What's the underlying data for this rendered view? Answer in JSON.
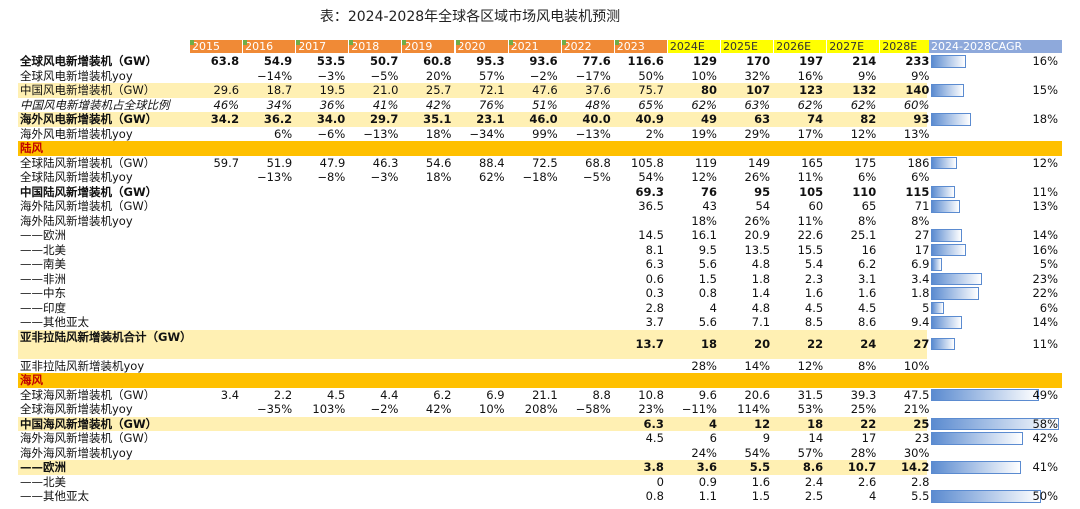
{
  "title": "表：2024-2028年全球各区域市场风电装机预测",
  "table": {
    "header": [
      "2015",
      "2016",
      "2017",
      "2018",
      "2019",
      "2020",
      "2021",
      "2022",
      "2023",
      "2024E",
      "2025E",
      "2026E",
      "2027E",
      "2028E",
      "2024-2028CAGR"
    ],
    "rows": [
      {
        "label": "全球风电新增装机（GW）",
        "values": [
          "63.8",
          "54.9",
          "53.5",
          "50.7",
          "60.8",
          "95.3",
          "93.6",
          "77.6",
          "116.6",
          "129",
          "170",
          "197",
          "214",
          "233"
        ],
        "cagr": {
          "value": 16,
          "label": "16%"
        }
      },
      {
        "label": "全球风电新增装机yoy",
        "values": [
          null,
          "−14%",
          "−3%",
          "−5%",
          "20%",
          "57%",
          "−2%",
          "−17%",
          "50%",
          "10%",
          "32%",
          "16%",
          "9%",
          "9%"
        ],
        "cagr": null
      },
      {
        "label": "中国风电新增装机（GW）",
        "values": [
          "29.6",
          "18.7",
          "19.5",
          "21.0",
          "25.7",
          "72.1",
          "47.6",
          "37.6",
          "75.7",
          "80",
          "107",
          "123",
          "132",
          "140"
        ],
        "cagr": {
          "value": 15,
          "label": "15%"
        }
      },
      {
        "label": "中国风电新增装机占全球比例",
        "values": [
          "46%",
          "34%",
          "36%",
          "41%",
          "42%",
          "76%",
          "51%",
          "48%",
          "65%",
          "62%",
          "63%",
          "62%",
          "62%",
          "60%"
        ],
        "cagr": null
      },
      {
        "label": "海外风电新增装机（GW）",
        "values": [
          "34.2",
          "36.2",
          "34.0",
          "29.7",
          "35.1",
          "23.1",
          "46.0",
          "40.0",
          "40.9",
          "49",
          "63",
          "74",
          "82",
          "93"
        ],
        "cagr": {
          "value": 18,
          "label": "18%"
        }
      },
      {
        "label": "海外风电新增装机yoy",
        "values": [
          null,
          "6%",
          "−6%",
          "−13%",
          "18%",
          "−34%",
          "99%",
          "−13%",
          "2%",
          "19%",
          "29%",
          "17%",
          "12%",
          "13%"
        ],
        "cagr": null
      },
      {
        "label": "陆风",
        "values": [
          null,
          null,
          null,
          null,
          null,
          null,
          null,
          null,
          null,
          null,
          null,
          null,
          null,
          null
        ],
        "cagr": null
      },
      {
        "label": "全球陆风新增装机（GW）",
        "values": [
          "59.7",
          "51.9",
          "47.9",
          "46.3",
          "54.6",
          "88.4",
          "72.5",
          "68.8",
          "105.8",
          "119",
          "149",
          "165",
          "175",
          "186"
        ],
        "cagr": {
          "value": 12,
          "label": "12%"
        }
      },
      {
        "label": "全球陆风新增装机yoy",
        "values": [
          null,
          "−13%",
          "−8%",
          "−3%",
          "18%",
          "62%",
          "−18%",
          "−5%",
          "54%",
          "12%",
          "26%",
          "11%",
          "6%",
          "6%"
        ],
        "cagr": null
      },
      {
        "label": "中国陆风新增装机（GW）",
        "values": [
          null,
          null,
          null,
          null,
          null,
          null,
          null,
          null,
          "69.3",
          "76",
          "95",
          "105",
          "110",
          "115"
        ],
        "cagr": {
          "value": 11,
          "label": "11%"
        }
      },
      {
        "label": "海外陆风新增装机（GW）",
        "values": [
          null,
          null,
          null,
          null,
          null,
          null,
          null,
          null,
          "36.5",
          "43",
          "54",
          "60",
          "65",
          "71"
        ],
        "cagr": {
          "value": 13,
          "label": "13%"
        }
      },
      {
        "label": "海外陆风新增装机yoy",
        "values": [
          null,
          null,
          null,
          null,
          null,
          null,
          null,
          null,
          null,
          "18%",
          "26%",
          "11%",
          "8%",
          "8%"
        ],
        "cagr": null
      },
      {
        "label": "——欧洲",
        "values": [
          null,
          null,
          null,
          null,
          null,
          null,
          null,
          null,
          "14.5",
          "16.1",
          "20.9",
          "22.6",
          "25.1",
          "27"
        ],
        "cagr": {
          "value": 14,
          "label": "14%"
        }
      },
      {
        "label": "——北美",
        "values": [
          null,
          null,
          null,
          null,
          null,
          null,
          null,
          null,
          "8.1",
          "9.5",
          "13.5",
          "15.5",
          "16",
          "17"
        ],
        "cagr": {
          "value": 16,
          "label": "16%"
        }
      },
      {
        "label": "——南美",
        "values": [
          null,
          null,
          null,
          null,
          null,
          null,
          null,
          null,
          "6.3",
          "5.6",
          "4.8",
          "5.4",
          "6.2",
          "6.9"
        ],
        "cagr": {
          "value": 5,
          "label": "5%"
        }
      },
      {
        "label": "——非洲",
        "values": [
          null,
          null,
          null,
          null,
          null,
          null,
          null,
          null,
          "0.6",
          "1.5",
          "1.8",
          "2.3",
          "3.1",
          "3.4"
        ],
        "cagr": {
          "value": 23,
          "label": "23%"
        }
      },
      {
        "label": "——中东",
        "values": [
          null,
          null,
          null,
          null,
          null,
          null,
          null,
          null,
          "0.3",
          "0.8",
          "1.4",
          "1.6",
          "1.6",
          "1.8"
        ],
        "cagr": {
          "value": 22,
          "label": "22%"
        }
      },
      {
        "label": "——印度",
        "values": [
          null,
          null,
          null,
          null,
          null,
          null,
          null,
          null,
          "2.8",
          "4",
          "4.8",
          "4.5",
          "4.5",
          "5"
        ],
        "cagr": {
          "value": 6,
          "label": "6%"
        }
      },
      {
        "label": "——其他亚太",
        "values": [
          null,
          null,
          null,
          null,
          null,
          null,
          null,
          null,
          "3.7",
          "5.6",
          "7.1",
          "8.5",
          "8.6",
          "9.4"
        ],
        "cagr": {
          "value": 14,
          "label": "14%"
        }
      },
      {
        "label": "亚非拉陆风新增装机合计（GW）",
        "values": [
          null,
          null,
          null,
          null,
          null,
          null,
          null,
          null,
          "13.7",
          "18",
          "20",
          "22",
          "24",
          "27"
        ],
        "cagr": {
          "value": 11,
          "label": "11%"
        }
      },
      {
        "label": "亚非拉陆风新增装机yoy",
        "values": [
          null,
          null,
          null,
          null,
          null,
          null,
          null,
          null,
          null,
          "28%",
          "14%",
          "12%",
          "8%",
          "10%"
        ],
        "cagr": null
      },
      {
        "label": "海风",
        "values": [
          null,
          null,
          null,
          null,
          null,
          null,
          null,
          null,
          null,
          null,
          null,
          null,
          null,
          null
        ],
        "cagr": null
      },
      {
        "label": "全球海风新增装机（GW）",
        "values": [
          "3.4",
          "2.2",
          "4.5",
          "4.4",
          "6.2",
          "6.9",
          "21.1",
          "8.8",
          "10.8",
          "9.6",
          "20.6",
          "31.5",
          "39.3",
          "47.5"
        ],
        "cagr": {
          "value": 49,
          "label": "49%"
        }
      },
      {
        "label": "全球海风新增装机yoy",
        "values": [
          null,
          "−35%",
          "103%",
          "−2%",
          "42%",
          "10%",
          "208%",
          "−58%",
          "23%",
          "−11%",
          "114%",
          "53%",
          "25%",
          "21%"
        ],
        "cagr": null
      },
      {
        "label": "中国海风新增装机（GW）",
        "values": [
          null,
          null,
          null,
          null,
          null,
          null,
          null,
          null,
          "6.3",
          "4",
          "12",
          "18",
          "22",
          "25"
        ],
        "cagr": {
          "value": 58,
          "label": "58%"
        }
      },
      {
        "label": "海外海风新增装机（GW）",
        "values": [
          null,
          null,
          null,
          null,
          null,
          null,
          null,
          null,
          "4.5",
          "6",
          "9",
          "14",
          "17",
          "23"
        ],
        "cagr": {
          "value": 42,
          "label": "42%"
        }
      },
      {
        "label": "海外海风新增装机yoy",
        "values": [
          null,
          null,
          null,
          null,
          null,
          null,
          null,
          null,
          null,
          "24%",
          "54%",
          "57%",
          "28%",
          "30%"
        ],
        "cagr": null
      },
      {
        "label": "——欧洲",
        "values": [
          null,
          null,
          null,
          null,
          null,
          null,
          null,
          null,
          "3.8",
          "3.6",
          "5.5",
          "8.6",
          "10.7",
          "14.2"
        ],
        "cagr": {
          "value": 41,
          "label": "41%"
        }
      },
      {
        "label": "——北美",
        "values": [
          null,
          null,
          null,
          null,
          null,
          null,
          null,
          null,
          "0",
          "0.9",
          "1.6",
          "2.4",
          "2.6",
          "2.8"
        ],
        "cagr": null
      },
      {
        "label": "——其他亚太",
        "values": [
          null,
          null,
          null,
          null,
          null,
          null,
          null,
          null,
          "0.8",
          "1.1",
          "1.5",
          "2.5",
          "4",
          "5.5"
        ],
        "cagr": {
          "value": 50,
          "label": "50%"
        }
      }
    ]
  }
}
